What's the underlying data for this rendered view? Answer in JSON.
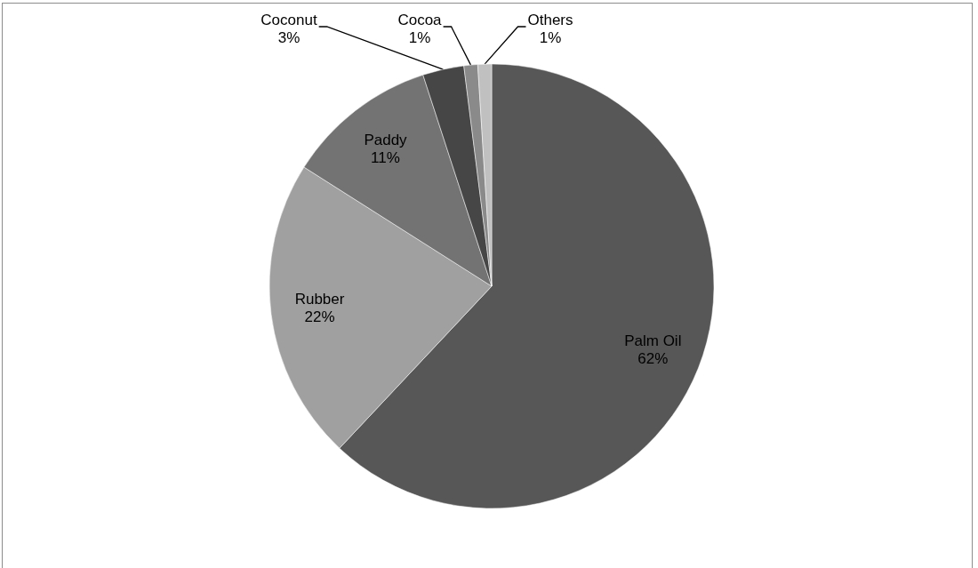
{
  "chart_data": {
    "type": "pie",
    "categories": [
      "Palm Oil",
      "Rubber",
      "Paddy",
      "Coconut",
      "Cocoa",
      "Others"
    ],
    "values": [
      62,
      22,
      11,
      3,
      1,
      1
    ],
    "colors": [
      "#575757",
      "#a0a0a0",
      "#737373",
      "#464646",
      "#8a8a8a",
      "#c0c0c0"
    ],
    "value_labels": [
      "62%",
      "22%",
      "11%",
      "3%",
      "1%",
      "1%"
    ]
  }
}
